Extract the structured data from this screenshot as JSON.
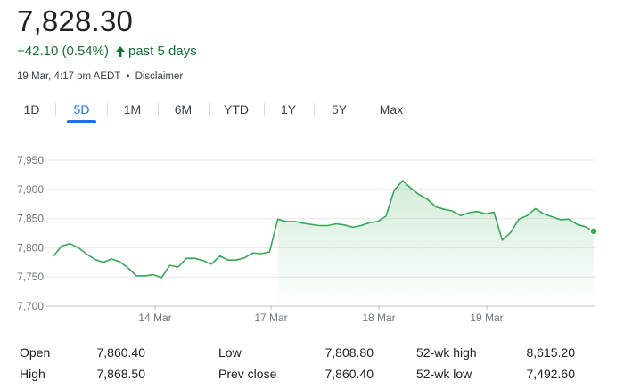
{
  "quote": {
    "price": "7,828.30",
    "change": "+42.10 (0.54%)",
    "period": "past 5 days",
    "timestamp": "19 Mar, 4:17 pm AEDT",
    "separator": "•",
    "disclaimer": "Disclaimer",
    "positive_color": "#137333",
    "arrow_icon": "arrow-up-icon"
  },
  "tabs": [
    {
      "label": "1D",
      "active": false
    },
    {
      "label": "5D",
      "active": true
    },
    {
      "label": "1M",
      "active": false
    },
    {
      "label": "6M",
      "active": false
    },
    {
      "label": "YTD",
      "active": false
    },
    {
      "label": "1Y",
      "active": false
    },
    {
      "label": "5Y",
      "active": false
    },
    {
      "label": "Max",
      "active": false
    }
  ],
  "chart_data": {
    "type": "area",
    "y_ticks": [
      "7,950",
      "7,900",
      "7,850",
      "7,800",
      "7,750",
      "7,700"
    ],
    "ylim": [
      7700,
      7950
    ],
    "x_ticks": [
      "14 Mar",
      "17 Mar",
      "18 Mar",
      "19 Mar"
    ],
    "grid": true,
    "line_color": "#34a853",
    "values": [
      7786,
      7803,
      7807,
      7800,
      7789,
      7780,
      7775,
      7781,
      7776,
      7765,
      7752,
      7752,
      7754,
      7749,
      7770,
      7767,
      7782,
      7782,
      7778,
      7772,
      7786,
      7779,
      7779,
      7783,
      7791,
      7790,
      7793,
      7849,
      7845,
      7845,
      7842,
      7840,
      7838,
      7838,
      7841,
      7839,
      7835,
      7838,
      7843,
      7845,
      7854,
      7898,
      7915,
      7902,
      7891,
      7883,
      7870,
      7866,
      7863,
      7855,
      7860,
      7862,
      7858,
      7861,
      7813,
      7826,
      7849,
      7855,
      7867,
      7858,
      7853,
      7848,
      7849,
      7840,
      7836,
      7828.3
    ]
  },
  "stats": {
    "open_label": "Open",
    "open_value": "7,860.40",
    "high_label": "High",
    "high_value": "7,868.50",
    "low_label": "Low",
    "low_value": "7,808.80",
    "prev_close_label": "Prev close",
    "prev_close_value": "7,860.40",
    "wk52_high_label": "52-wk high",
    "wk52_high_value": "8,615.20",
    "wk52_low_label": "52-wk low",
    "wk52_low_value": "7,492.60"
  }
}
